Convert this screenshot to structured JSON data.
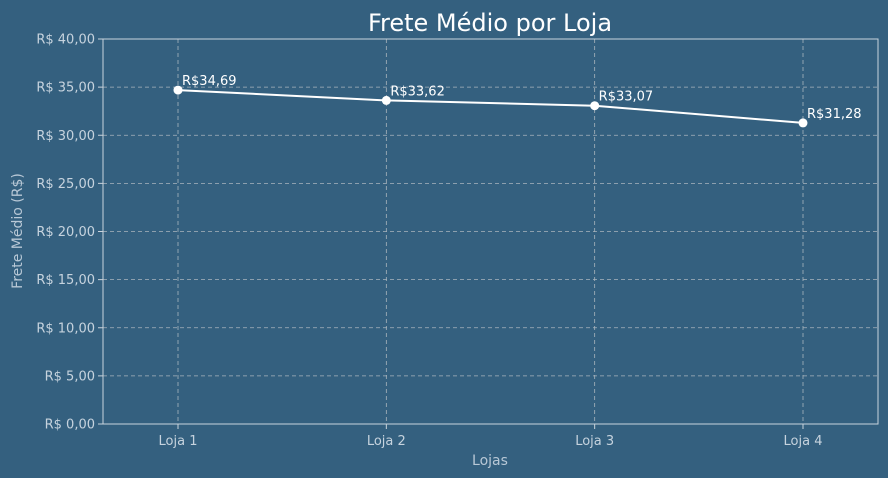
{
  "chart_data": {
    "type": "line",
    "title": "Frete Médio por Loja",
    "xlabel": "Lojas",
    "ylabel": "Frete Médio (R$)",
    "categories": [
      "Loja 1",
      "Loja 2",
      "Loja 3",
      "Loja 4"
    ],
    "values": [
      34.69,
      33.62,
      33.07,
      31.28
    ],
    "data_labels": [
      "R$34,69",
      "R$33,62",
      "R$33,07",
      "R$31,28"
    ],
    "ylim": [
      0,
      40
    ],
    "yticks": [
      0,
      5,
      10,
      15,
      20,
      25,
      30,
      35,
      40
    ],
    "ytick_labels": [
      "R$ 0,00",
      "R$ 5,00",
      "R$ 10,00",
      "R$ 15,00",
      "R$ 20,00",
      "R$ 25,00",
      "R$ 30,00",
      "R$ 35,00",
      "R$ 40,00"
    ],
    "grid": true,
    "colors": {
      "background": "#34607f",
      "line": "#ffffff",
      "grid": "#a9b4bd",
      "text": "#c6d3de",
      "title": "#ffffff"
    }
  }
}
